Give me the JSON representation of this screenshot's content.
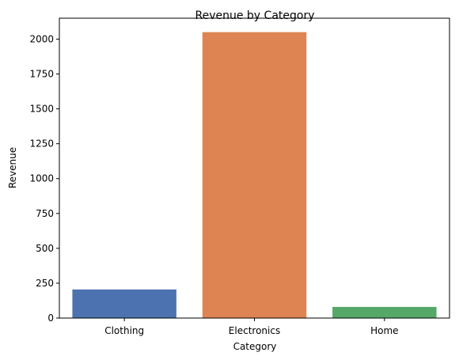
{
  "chart_data": {
    "type": "bar",
    "title": "Revenue by Category",
    "xlabel": "Category",
    "ylabel": "Revenue",
    "categories": [
      "Clothing",
      "Electronics",
      "Home"
    ],
    "values": [
      205,
      2050,
      80
    ],
    "colors": [
      "#4c72b0",
      "#dd8452",
      "#55a868"
    ],
    "ylim": [
      0,
      2150
    ],
    "yticks": [
      0,
      250,
      500,
      750,
      1000,
      1250,
      1500,
      1750,
      2000
    ],
    "grid": false,
    "legend": "none"
  }
}
